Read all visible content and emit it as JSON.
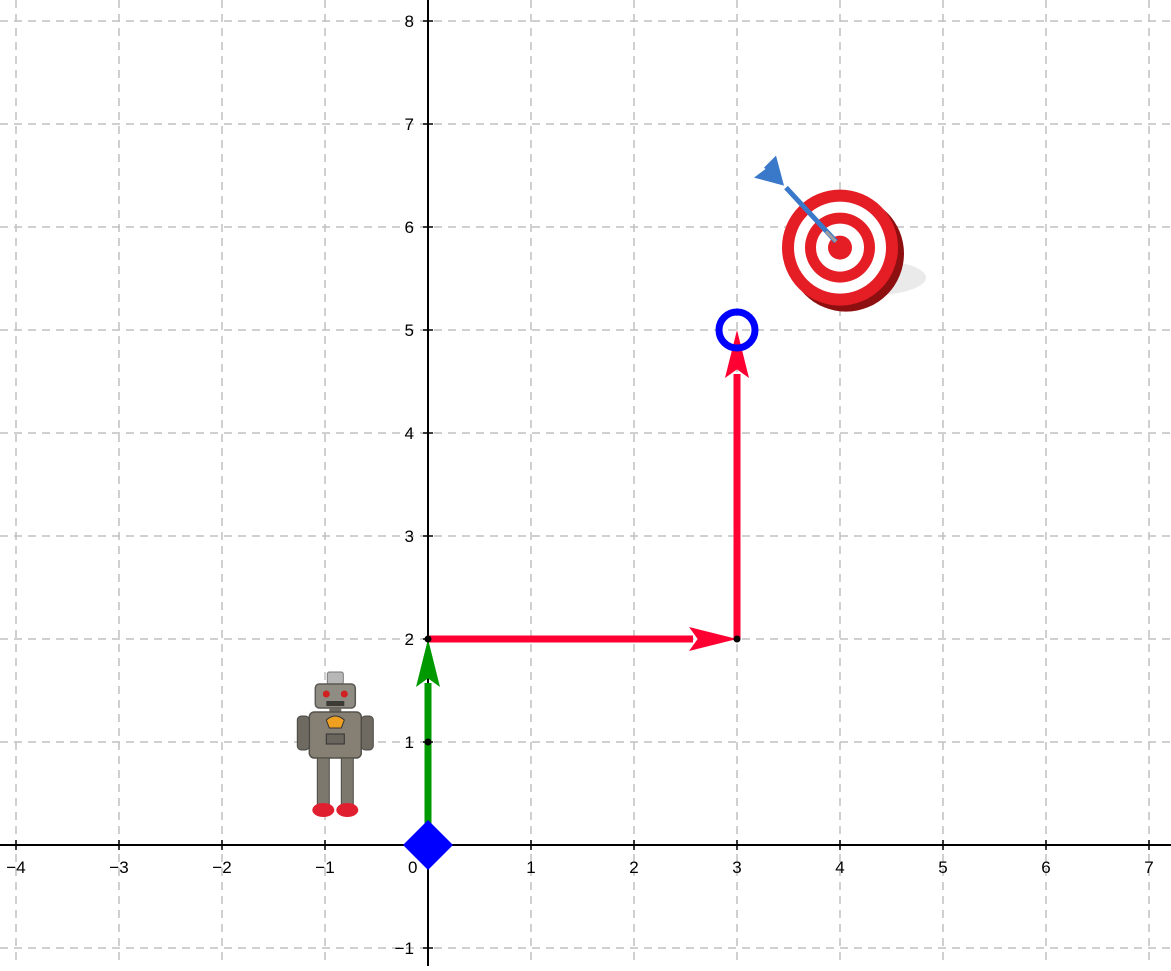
{
  "chart_data": {
    "type": "scatter",
    "title": "",
    "xlabel": "",
    "ylabel": "",
    "xlim": [
      -4.1,
      7.2
    ],
    "ylim": [
      -1.15,
      8.2
    ],
    "grid": true,
    "x_ticks": [
      -4,
      -3,
      -2,
      -1,
      0,
      1,
      2,
      3,
      4,
      5,
      6,
      7
    ],
    "y_ticks": [
      -1,
      1,
      2,
      3,
      4,
      5,
      6,
      7,
      8
    ],
    "x_tick_labels": [
      "−4",
      "−3",
      "−2",
      "−1",
      "0",
      "1",
      "2",
      "3",
      "4",
      "5",
      "6",
      "7"
    ],
    "y_tick_labels": [
      "−1",
      "1",
      "2",
      "3",
      "4",
      "5",
      "6",
      "7",
      "8"
    ],
    "vectors": [
      {
        "from": [
          0,
          0
        ],
        "to": [
          0,
          2
        ],
        "color": "#009900"
      },
      {
        "from": [
          0,
          2
        ],
        "to": [
          3,
          2
        ],
        "color": "#ff0033"
      },
      {
        "from": [
          3,
          2
        ],
        "to": [
          3,
          5
        ],
        "color": "#ff0033"
      }
    ],
    "points": [
      {
        "x": 0,
        "y": 1
      },
      {
        "x": 0,
        "y": 2
      },
      {
        "x": 3,
        "y": 2
      }
    ],
    "start_marker": {
      "x": 0,
      "y": 0,
      "shape": "diamond",
      "color": "#0000ff"
    },
    "end_marker": {
      "x": 3,
      "y": 5,
      "shape": "ring",
      "color": "#0000ff"
    },
    "robot_image": {
      "x": -0.9,
      "y": 1
    },
    "target_image": {
      "x": 4,
      "y": 5.8
    }
  }
}
